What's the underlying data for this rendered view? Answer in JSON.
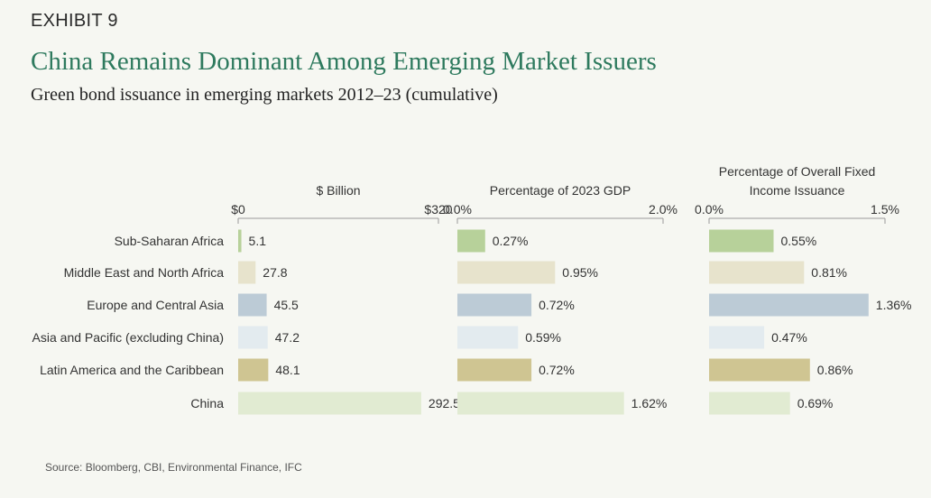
{
  "header": {
    "exhibit": "EXHIBIT 9",
    "title": "China Remains Dominant Among Emerging Market Issuers",
    "subtitle": "Green bond issuance in emerging markets 2012–23 (cumulative)"
  },
  "source": "Source: Bloomberg, CBI, Environmental Finance, IFC",
  "chart_data": {
    "type": "bar",
    "orientation": "horizontal",
    "categories": [
      "Sub-Saharan Africa",
      "Middle East and North Africa",
      "Europe and Central Asia",
      "Asia and Pacific (excluding China)",
      "Latin America and the Caribbean",
      "China"
    ],
    "colors": [
      "#b7d19a",
      "#e7e3cc",
      "#bccbd6",
      "#e3ebef",
      "#cfc592",
      "#e1ebd2"
    ],
    "grid": false,
    "legend": "none",
    "panels": [
      {
        "title": "$ Billion",
        "xlim": [
          0,
          320
        ],
        "tick_labels": [
          "$0",
          "$320"
        ],
        "values": [
          5.1,
          27.8,
          45.5,
          47.2,
          48.1,
          292.5
        ],
        "value_labels": [
          "5.1",
          "27.8",
          "45.5",
          "47.2",
          "48.1",
          "292.5"
        ]
      },
      {
        "title": "Percentage of 2023 GDP",
        "xlim": [
          0,
          2.0
        ],
        "tick_labels": [
          "0.0%",
          "2.0%"
        ],
        "values": [
          0.27,
          0.95,
          0.72,
          0.59,
          0.72,
          1.62
        ],
        "value_labels": [
          "0.27%",
          "0.95%",
          "0.72%",
          "0.59%",
          "0.72%",
          "1.62%"
        ]
      },
      {
        "title": "Percentage of Overall Fixed Income Issuance",
        "title_lines": [
          "Percentage of Overall Fixed",
          "Income Issuance"
        ],
        "xlim": [
          0,
          1.5
        ],
        "tick_labels": [
          "0.0%",
          "1.5%"
        ],
        "values": [
          0.55,
          0.81,
          1.36,
          0.47,
          0.86,
          0.69
        ],
        "value_labels": [
          "0.55%",
          "0.81%",
          "1.36%",
          "0.47%",
          "0.86%",
          "0.69%"
        ]
      }
    ]
  }
}
